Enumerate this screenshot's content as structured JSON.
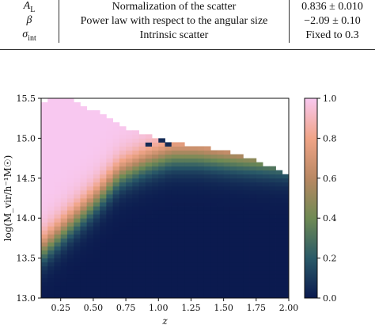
{
  "table": {
    "rows": [
      {
        "symbol": "A_L",
        "symbol_display": "A",
        "symbol_sub": "L",
        "description": "Normalization of the scatter",
        "value": "0.836 ± 0.010"
      },
      {
        "symbol": "β",
        "symbol_display": "β",
        "symbol_sub": "",
        "description": "Power law with respect to the angular size",
        "value": "−2.09 ± 0.10"
      },
      {
        "symbol": "σ_int",
        "symbol_display": "σ",
        "symbol_sub": "int",
        "description": "Intrinsic scatter",
        "value": "Fixed to 0.3"
      }
    ]
  },
  "chart_data": {
    "type": "heatmap",
    "xlabel": "z",
    "ylabel": "log(M_vir/h⁻¹M☉)",
    "xlim": [
      0.1,
      2.0
    ],
    "ylim": [
      13.0,
      15.5
    ],
    "x_ticks": [
      "0.25",
      "0.50",
      "0.75",
      "1.00",
      "1.25",
      "1.50",
      "1.75",
      "2.00"
    ],
    "y_ticks": [
      "13.0",
      "13.5",
      "14.0",
      "14.5",
      "15.0",
      "15.5"
    ],
    "colorbar": {
      "range": [
        0.0,
        1.0
      ],
      "ticks": [
        "0.0",
        "0.2",
        "0.4",
        "0.6",
        "0.8",
        "1.0"
      ],
      "colors": [
        "#0b1a4f",
        "#2a5a68",
        "#6f8a54",
        "#b98863",
        "#f0a487",
        "#f8c8f0"
      ]
    },
    "grid": false,
    "z_bins": 38,
    "mass_bins": 50,
    "transition_mass_at_z": [
      [
        0.1,
        13.6
      ],
      [
        0.3,
        13.9
      ],
      [
        0.5,
        14.2
      ],
      [
        0.7,
        14.55
      ],
      [
        0.9,
        14.7
      ],
      [
        1.1,
        14.8
      ],
      [
        1.3,
        14.8
      ],
      [
        1.6,
        14.75
      ],
      [
        2.0,
        14.7
      ]
    ],
    "transition_width_dex": 0.45,
    "upper_mass_limit_at_z": [
      [
        0.1,
        15.45
      ],
      [
        0.2,
        15.5
      ],
      [
        0.3,
        15.5
      ],
      [
        0.5,
        15.35
      ],
      [
        0.7,
        15.15
      ],
      [
        0.9,
        15.05
      ],
      [
        1.1,
        14.95
      ],
      [
        1.3,
        14.9
      ],
      [
        1.5,
        14.85
      ],
      [
        1.7,
        14.75
      ],
      [
        1.85,
        14.65
      ],
      [
        2.0,
        14.5
      ]
    ]
  }
}
